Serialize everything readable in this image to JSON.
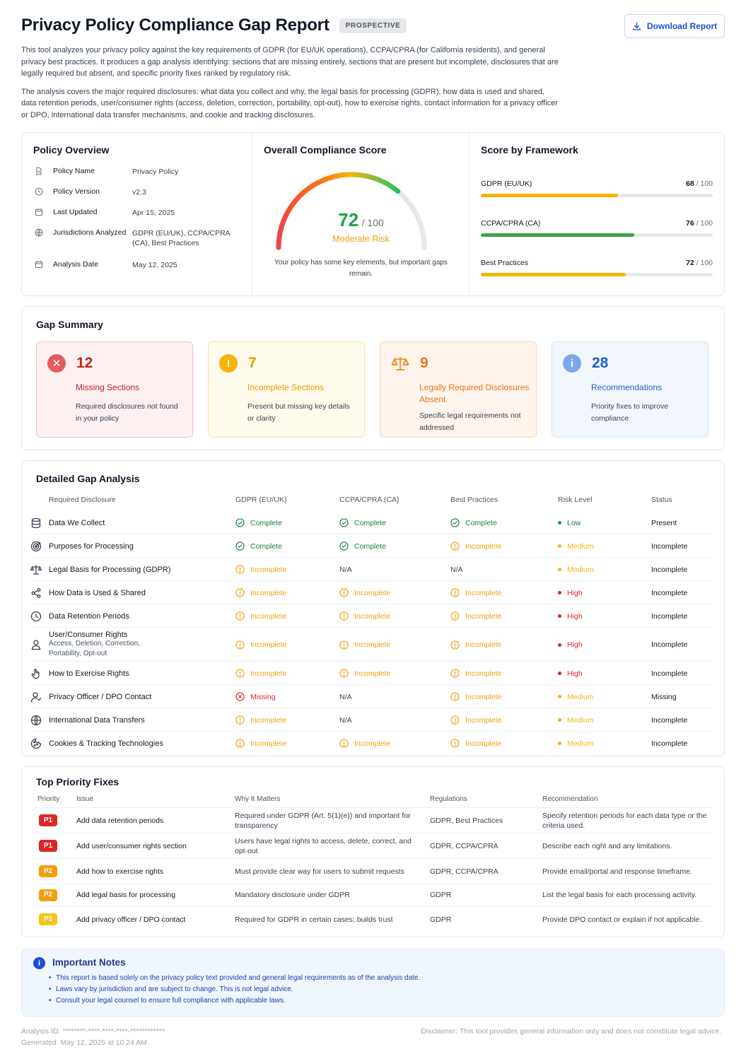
{
  "header": {
    "title": "Privacy Policy Compliance Gap Report",
    "badge": "PROSPECTIVE",
    "download_label": "Download Report"
  },
  "intro": [
    "This tool analyzes your privacy policy against the key requirements of GDPR (for EU/UK operations), CCPA/CPRA (for California residents), and general privacy best practices. It produces a gap analysis identifying: sections that are missing entirely, sections that are present but incomplete, disclosures that are legally required but absent, and specific priority fixes ranked by regulatory risk.",
    "The analysis covers the major required disclosures: what data you collect and why, the legal basis for processing (GDPR), how data is used and shared, data retention periods, user/consumer rights (access, deletion, correction, portability, opt-out), how to exercise rights, contact information for a privacy officer or DPO, international data transfer mechanisms, and cookie and tracking disclosures."
  ],
  "overview": {
    "title": "Policy Overview",
    "rows": [
      {
        "icon": "document-icon",
        "label": "Policy Name",
        "value": "Privacy Policy"
      },
      {
        "icon": "clock-icon",
        "label": "Policy Version",
        "value": "v2.3"
      },
      {
        "icon": "calendar-icon",
        "label": "Last Updated",
        "value": "Apr 15, 2025"
      },
      {
        "icon": "globe-icon",
        "label": "Jurisdictions Analyzed",
        "value": "GDPR (EU/UK), CCPA/CPRA (CA), Best Practices"
      },
      {
        "icon": "calendar-icon",
        "label": "Analysis Date",
        "value": "May 12, 2025"
      }
    ]
  },
  "compliance": {
    "title": "Overall Compliance Score",
    "score": "72",
    "out_of": "/ 100",
    "risk": "Moderate Risk",
    "note": "Your policy has some key elements, but important gaps remain.",
    "score_fraction": 0.72
  },
  "frameworks": {
    "title": "Score by Framework",
    "items": [
      {
        "name": "GDPR (EU/UK)",
        "score": "68",
        "out_of": "/ 100",
        "value": 68,
        "color": "#f5b40b"
      },
      {
        "name": "CCPA/CPRA (CA)",
        "score": "76",
        "out_of": "/ 100",
        "value": 76,
        "color": "#3fa34d"
      },
      {
        "name": "Best Practices",
        "score": "72",
        "out_of": "/ 100",
        "value": 72,
        "color": "#f5b40b"
      }
    ]
  },
  "gap_summary": {
    "title": "Gap Summary",
    "boxes": [
      {
        "count": "12",
        "title": "Missing Sections",
        "desc": "Required disclosures not found in your policy"
      },
      {
        "count": "7",
        "title": "Incomplete Sections",
        "desc": "Present but missing key details or clarity"
      },
      {
        "count": "9",
        "title": "Legally Required Disclosures Absent",
        "desc": "Specific legal requirements not addressed"
      },
      {
        "count": "28",
        "title": "Recommendations",
        "desc": "Priority fixes to improve compliance"
      }
    ]
  },
  "detail": {
    "title": "Detailed Gap Analysis",
    "headers": [
      "Required Disclosure",
      "GDPR (EU/UK)",
      "CCPA/CPRA (CA)",
      "Best Practices",
      "Risk Level",
      "Status"
    ],
    "rows": [
      {
        "icon": "database-icon",
        "name": "Data We Collect",
        "sub": "",
        "gdpr": "Complete",
        "ccpa": "Complete",
        "best": "Complete",
        "risk": "Low",
        "status": "Present"
      },
      {
        "icon": "target-icon",
        "name": "Purposes for Processing",
        "sub": "",
        "gdpr": "Complete",
        "ccpa": "Complete",
        "best": "Incomplete",
        "risk": "Medium",
        "status": "Incomplete"
      },
      {
        "icon": "scale-icon",
        "name": "Legal Basis for Processing (GDPR)",
        "sub": "",
        "gdpr": "Incomplete",
        "ccpa": "N/A",
        "best": "N/A",
        "risk": "Medium",
        "status": "Incomplete"
      },
      {
        "icon": "share-icon",
        "name": "How Data is Used & Shared",
        "sub": "",
        "gdpr": "Incomplete",
        "ccpa": "Incomplete",
        "best": "Incomplete",
        "risk": "High",
        "status": "Incomplete"
      },
      {
        "icon": "clock-icon",
        "name": "Data Retention Periods",
        "sub": "",
        "gdpr": "Incomplete",
        "ccpa": "Incomplete",
        "best": "Incomplete",
        "risk": "High",
        "status": "Incomplete"
      },
      {
        "icon": "user-icon",
        "name": "User/Consumer Rights",
        "sub": "Access, Deletion, Correction, Portability, Opt-out",
        "gdpr": "Incomplete",
        "ccpa": "Incomplete",
        "best": "Incomplete",
        "risk": "High",
        "status": "Incomplete"
      },
      {
        "icon": "hand-icon",
        "name": "How to Exercise Rights",
        "sub": "",
        "gdpr": "Incomplete",
        "ccpa": "Incomplete",
        "best": "Incomplete",
        "risk": "High",
        "status": "Incomplete"
      },
      {
        "icon": "user-contact-icon",
        "name": "Privacy Officer / DPO Contact",
        "sub": "",
        "gdpr": "Missing",
        "ccpa": "N/A",
        "best": "Incomplete",
        "risk": "Medium",
        "status": "Missing"
      },
      {
        "icon": "globe-icon",
        "name": "International Data Transfers",
        "sub": "",
        "gdpr": "Incomplete",
        "ccpa": "N/A",
        "best": "Incomplete",
        "risk": "Medium",
        "status": "Incomplete"
      },
      {
        "icon": "cookie-icon",
        "name": "Cookies & Tracking Technologies",
        "sub": "",
        "gdpr": "Incomplete",
        "ccpa": "Incomplete",
        "best": "Incomplete",
        "risk": "Medium",
        "status": "Incomplete"
      }
    ]
  },
  "priority": {
    "title": "Top Priority Fixes",
    "headers": [
      "Priority",
      "Issue",
      "Why It Matters",
      "Regulations",
      "Recommendation"
    ],
    "rows": [
      {
        "p": "P1",
        "issue": "Add data retention periods",
        "why": "Required under GDPR (Art. 5(1)(e)) and important for transparency",
        "regs": "GDPR, Best Practices",
        "rec": "Specify retention periods for each data type or the criteria used."
      },
      {
        "p": "P1",
        "issue": "Add user/consumer rights section",
        "why": "Users have legal rights to access, delete, correct, and opt-out",
        "regs": "GDPR, CCPA/CPRA",
        "rec": "Describe each right and any limitations."
      },
      {
        "p": "P2",
        "issue": "Add how to exercise rights",
        "why": "Must provide clear way for users to submit requests",
        "regs": "GDPR, CCPA/CPRA",
        "rec": "Provide email/portal and response timeframe."
      },
      {
        "p": "P2",
        "issue": "Add legal basis for processing",
        "why": "Mandatory disclosure under GDPR",
        "regs": "GDPR",
        "rec": "List the legal basis for each processing activity."
      },
      {
        "p": "P3",
        "issue": "Add privacy officer / DPO contact",
        "why": "Required for GDPR in certain cases; builds trust",
        "regs": "GDPR",
        "rec": "Provide DPO contact or explain if not applicable."
      }
    ]
  },
  "notes": {
    "title": "Important Notes",
    "items": [
      "This report is based solely on the privacy policy text provided and general legal requirements as of the analysis date.",
      "Laws vary by jurisdiction and are subject to change. This is not legal advice.",
      "Consult your legal counsel to ensure full compliance with applicable laws."
    ]
  },
  "footer": {
    "analysis_id": "Analysis ID: ********-****-****-****-************",
    "generated": "Generated: May 12, 2025 at 10:24 AM",
    "disclaimer": "Disclaimer: This tool provides general information only and does not constitute legal advice."
  },
  "colors": {
    "complete": "#15803d",
    "incomplete": "#f59e0b",
    "missing": "#dc2626",
    "high": "#dc2626",
    "medium": "#f5b40b",
    "low": "#16a34a",
    "p1": "#dc2626",
    "p2": "#f59e0b",
    "p3": "#f5c518"
  }
}
